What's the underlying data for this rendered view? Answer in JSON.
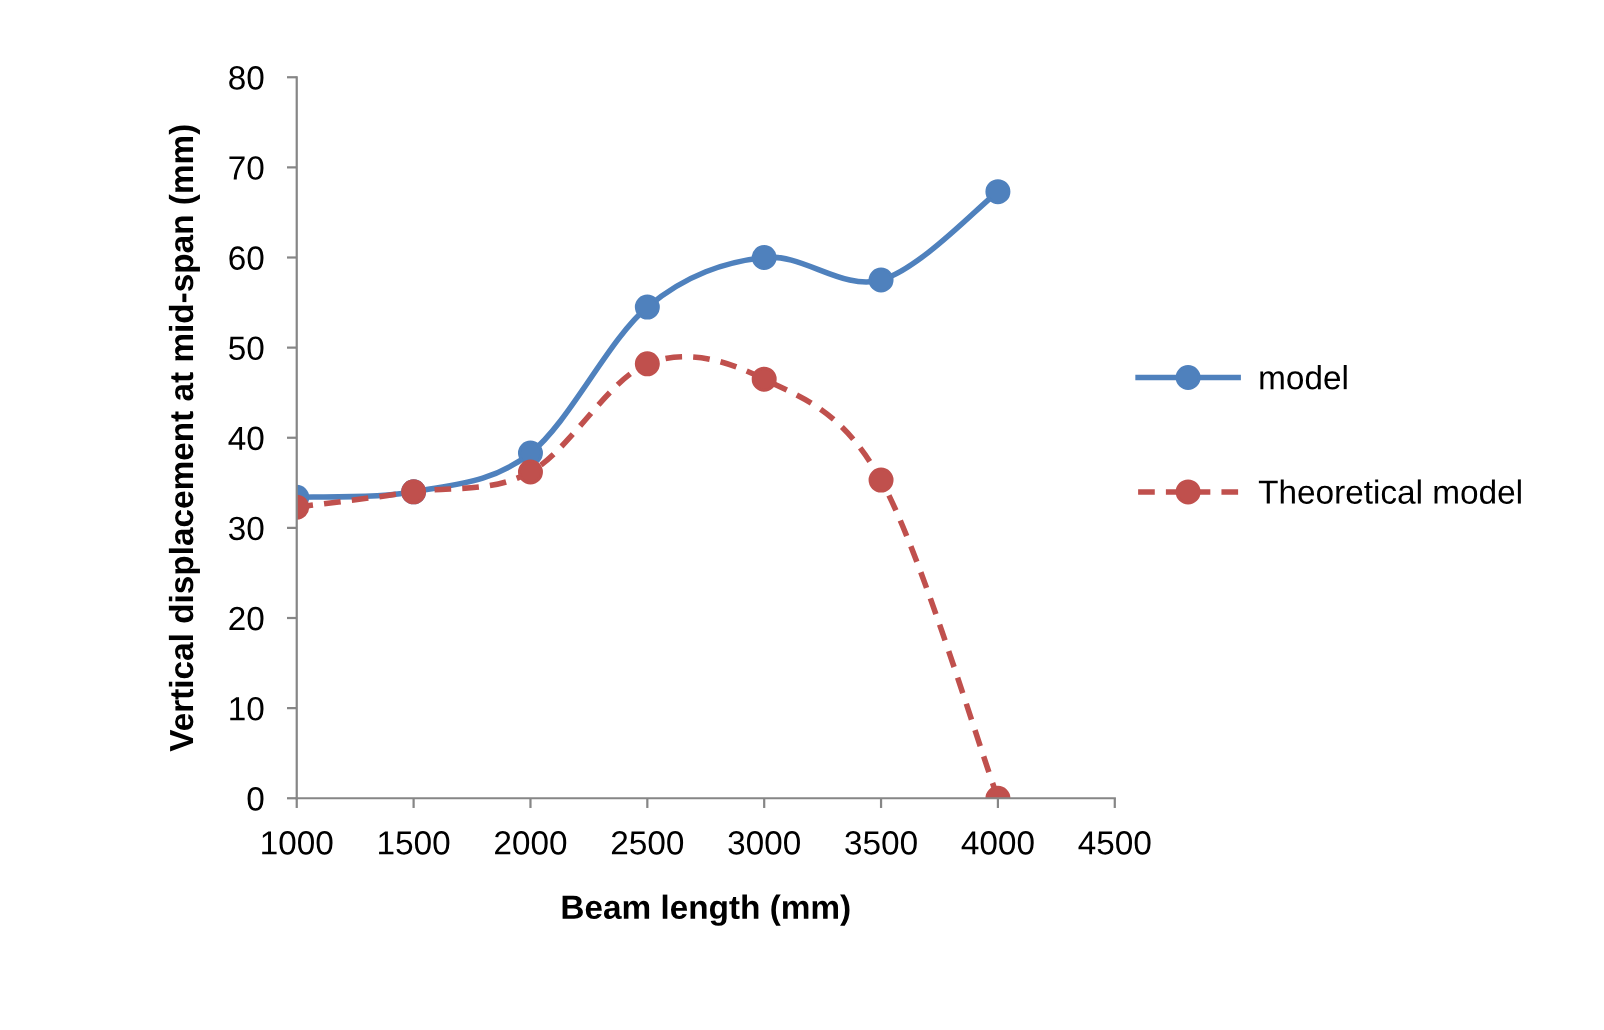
{
  "chart_data": {
    "type": "line",
    "xlabel": "Beam length (mm)",
    "ylabel": "Vertical displacement at mid-span (mm)",
    "x": [
      1000,
      1500,
      2000,
      2500,
      3000,
      3500,
      4000
    ],
    "series": [
      {
        "name": "model",
        "color": "#4f81bd",
        "line_style": "solid",
        "values": [
          33.4,
          34,
          38.3,
          54.5,
          60,
          57.5,
          67.3
        ]
      },
      {
        "name": "Theoretical model",
        "color": "#c0504d",
        "line_style": "dashed",
        "values": [
          32.3,
          34,
          36.2,
          48.2,
          46.5,
          35.3,
          0
        ]
      }
    ],
    "xlim": [
      1000,
      4500
    ],
    "xticks": [
      1000,
      1500,
      2000,
      2500,
      3000,
      3500,
      4000,
      4500
    ],
    "ylim": [
      0,
      80
    ],
    "yticks": [
      0,
      10,
      20,
      30,
      40,
      50,
      60,
      70,
      80
    ],
    "grid": false,
    "legend": "right",
    "marker": "circle"
  }
}
